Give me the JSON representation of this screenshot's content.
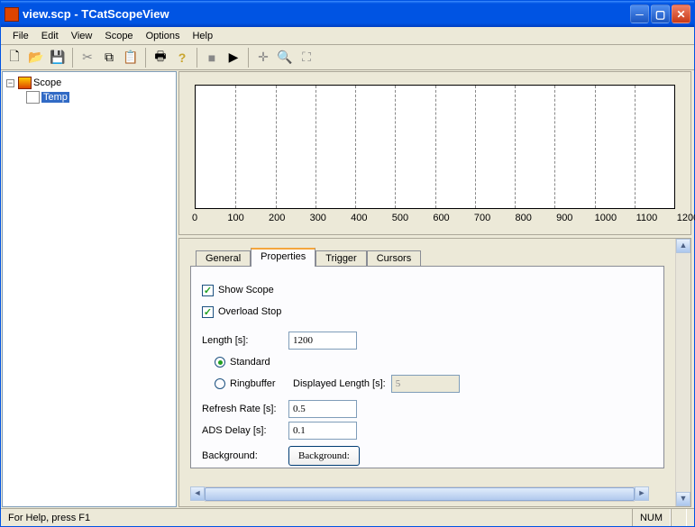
{
  "window": {
    "title": "view.scp - TCatScopeView"
  },
  "menus": [
    "File",
    "Edit",
    "View",
    "Scope",
    "Options",
    "Help"
  ],
  "toolbar": {
    "new": "new",
    "open": "open",
    "save": "save",
    "cut": "cut",
    "copy": "copy",
    "paste": "paste",
    "print": "print",
    "help": "help",
    "stop": "stop",
    "play": "play",
    "cursor": "cursor",
    "zoom": "zoom",
    "reset": "reset"
  },
  "tree": {
    "root": "Scope",
    "child": "Temp"
  },
  "chart": {
    "xticks": [
      0,
      100,
      200,
      300,
      400,
      500,
      600,
      700,
      800,
      900,
      1000,
      1100,
      1200
    ],
    "xmin": 0,
    "xmax": 1200,
    "xstep": 100,
    "background": "#ffffff",
    "grid_color": "#888888",
    "grid_style": "dashed"
  },
  "tabs": {
    "items": [
      "General",
      "Properties",
      "Trigger",
      "Cursors"
    ],
    "active": 1
  },
  "properties": {
    "show_scope": {
      "label": "Show Scope",
      "checked": true
    },
    "overload_stop": {
      "label": "Overload Stop",
      "checked": true
    },
    "length": {
      "label": "Length [s]:",
      "value": "1200"
    },
    "mode_standard": {
      "label": "Standard",
      "selected": true
    },
    "mode_ringbuffer": {
      "label": "Ringbuffer",
      "selected": false
    },
    "displayed_length": {
      "label": "Displayed Length [s]:",
      "value": "5",
      "enabled": false
    },
    "refresh_rate": {
      "label": "Refresh Rate [s]:",
      "value": "0.5"
    },
    "ads_delay": {
      "label": "ADS Delay [s]:",
      "value": "0.1"
    },
    "background": {
      "label": "Background:",
      "button": "Background:"
    }
  },
  "status": {
    "help": "For Help, press F1",
    "num": "NUM"
  }
}
